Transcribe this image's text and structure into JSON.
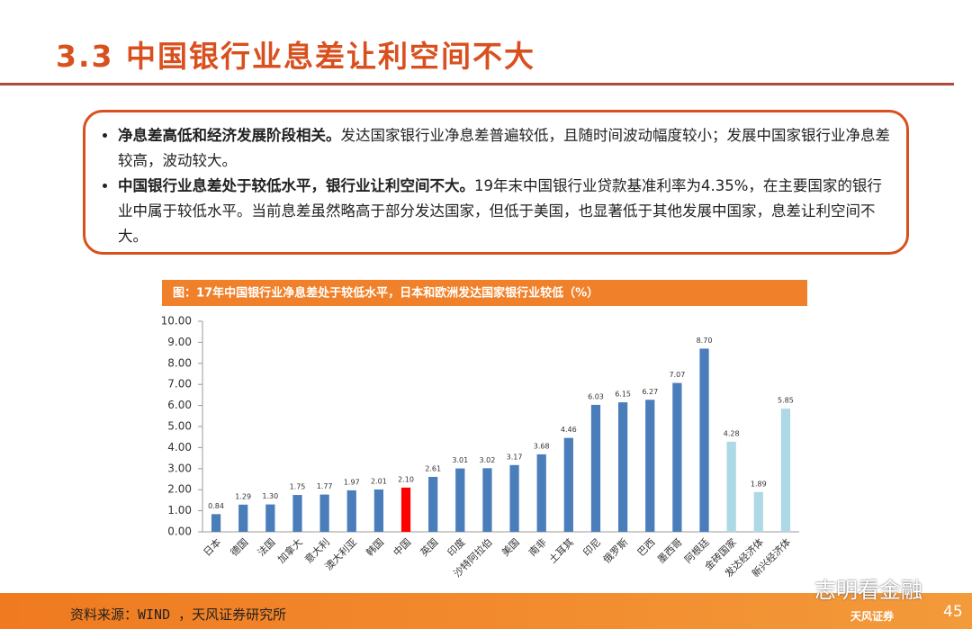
{
  "header": {
    "title": "3.3 中国银行业息差让利空间不大"
  },
  "bullets": [
    {
      "bold": "净息差高低和经济发展阶段相关。",
      "text": "发达国家银行业净息差普遍较低，且随时间波动幅度较小；发展中国家银行业净息差较高，波动较大。"
    },
    {
      "bold": "中国银行业息差处于较低水平，银行业让利空间不大。",
      "text": "19年末中国银行业贷款基准利率为4.35%，在主要国家的银行业中属于较低水平。当前息差虽然略高于部分发达国家，但低于美国，也显著低于其他发展中国家，息差让利空间不大。"
    }
  ],
  "chart_data": {
    "type": "bar",
    "title": "图：17年中国银行业净息差处于较低水平，日本和欧洲发达国家银行业较低（%）",
    "categories": [
      "日本",
      "德国",
      "法国",
      "加拿大",
      "意大利",
      "澳大利亚",
      "韩国",
      "中国",
      "英国",
      "印度",
      "沙特阿拉伯",
      "美国",
      "南非",
      "土耳其",
      "印尼",
      "俄罗斯",
      "巴西",
      "墨西哥",
      "阿根廷",
      "金砖国家",
      "发达经济体",
      "新兴经济体"
    ],
    "values": [
      0.84,
      1.29,
      1.3,
      1.75,
      1.77,
      1.97,
      2.01,
      2.1,
      2.61,
      3.01,
      3.02,
      3.17,
      3.68,
      4.46,
      6.03,
      6.15,
      6.27,
      7.07,
      8.7,
      4.28,
      1.89,
      5.85
    ],
    "value_labels": [
      "0.84",
      "1.29",
      "1.30",
      "1.75",
      "1.77",
      "1.97",
      "2.01",
      "2.10",
      "2.61",
      "3.01",
      "3.02",
      "3.17",
      "3.68",
      "4.46",
      "6.03",
      "6.15",
      "6.27",
      "7.07",
      "8.70",
      "4.28",
      "1.89",
      "5.85"
    ],
    "colors": [
      "#4a7ebb",
      "#4a7ebb",
      "#4a7ebb",
      "#4a7ebb",
      "#4a7ebb",
      "#4a7ebb",
      "#4a7ebb",
      "#ff0000",
      "#4a7ebb",
      "#4a7ebb",
      "#4a7ebb",
      "#4a7ebb",
      "#4a7ebb",
      "#4a7ebb",
      "#4a7ebb",
      "#4a7ebb",
      "#4a7ebb",
      "#4a7ebb",
      "#4a7ebb",
      "#add8e6",
      "#add8e6",
      "#add8e6"
    ],
    "ylim": [
      0,
      10
    ],
    "yticks": [
      {
        "value": 0,
        "label": "0.00"
      },
      {
        "value": 1,
        "label": "1.00"
      },
      {
        "value": 2,
        "label": "2.00"
      },
      {
        "value": 3,
        "label": "3.00"
      },
      {
        "value": 4,
        "label": "4.00"
      },
      {
        "value": 5,
        "label": "5.00"
      },
      {
        "value": 6,
        "label": "6.00"
      },
      {
        "value": 7,
        "label": "7.00"
      },
      {
        "value": 8,
        "label": "8.00"
      },
      {
        "value": 9,
        "label": "9.00"
      },
      {
        "value": 10,
        "label": "10.00"
      }
    ]
  },
  "footer": {
    "source": "资料来源：WIND ，天风证券研究所",
    "watermark": "志明看金融",
    "logo": "天风证券",
    "page": "45"
  }
}
